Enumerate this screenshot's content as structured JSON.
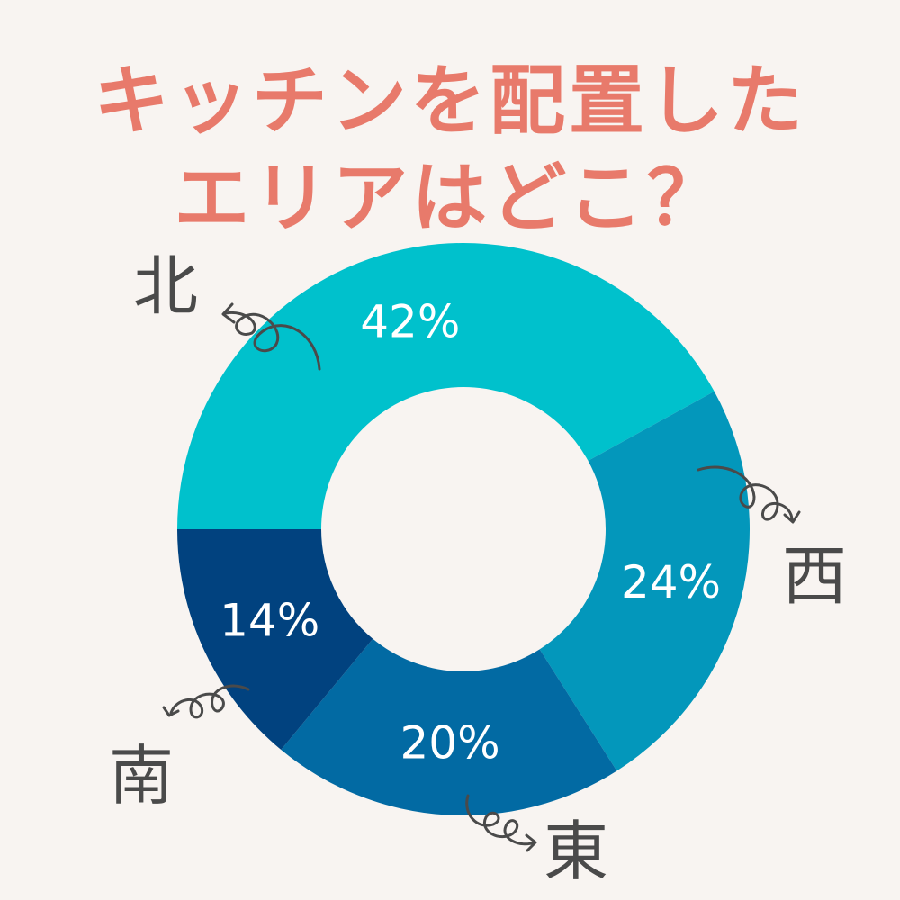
{
  "title": {
    "line1": "キッチンを配置した",
    "line2": "エリアはどこ？",
    "color": "#e87a6b"
  },
  "background": "#f8f4f1",
  "chart_data": {
    "type": "pie",
    "donut": true,
    "unit": "%",
    "slices": [
      {
        "label": "北",
        "value": 42,
        "display": "42%",
        "color": "#00c1cc"
      },
      {
        "label": "西",
        "value": 24,
        "display": "24%",
        "color": "#0397bb"
      },
      {
        "label": "東",
        "value": 20,
        "display": "20%",
        "color": "#026aa3"
      },
      {
        "label": "南",
        "value": 14,
        "display": "14%",
        "color": "#01427f"
      }
    ]
  }
}
